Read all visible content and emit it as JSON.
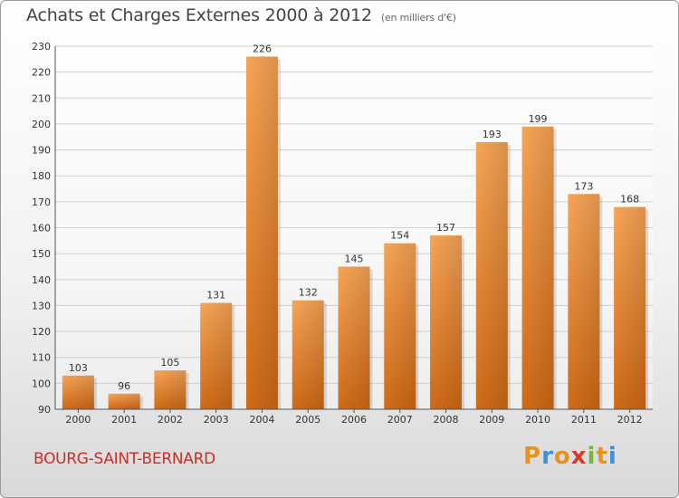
{
  "title": "Achats et Charges Externes 2000 à 2012",
  "subtitle": "(en milliers d'€)",
  "location": "BOURG-SAINT-BERNARD",
  "logo": {
    "letters": [
      "P",
      "r",
      "o",
      "x",
      "i",
      "t",
      "i"
    ],
    "colors": [
      "#e8931e",
      "#3f8fd2",
      "#e8931e",
      "#d93b2a",
      "#7bb342",
      "#e8931e",
      "#3f8fd2"
    ]
  },
  "chart_data": {
    "type": "bar",
    "categories": [
      "2000",
      "2001",
      "2002",
      "2003",
      "2004",
      "2005",
      "2006",
      "2007",
      "2008",
      "2009",
      "2010",
      "2011",
      "2012"
    ],
    "values": [
      103,
      96,
      105,
      131,
      226,
      132,
      145,
      154,
      157,
      193,
      199,
      173,
      168
    ],
    "title": "Achats et Charges Externes 2000 à 2012",
    "xlabel": "",
    "ylabel": "",
    "ylim": [
      90,
      230
    ],
    "yticks": [
      90,
      100,
      110,
      120,
      130,
      140,
      150,
      160,
      170,
      180,
      190,
      200,
      210,
      220,
      230
    ],
    "grid": true,
    "bar_color": "#f2953f"
  }
}
